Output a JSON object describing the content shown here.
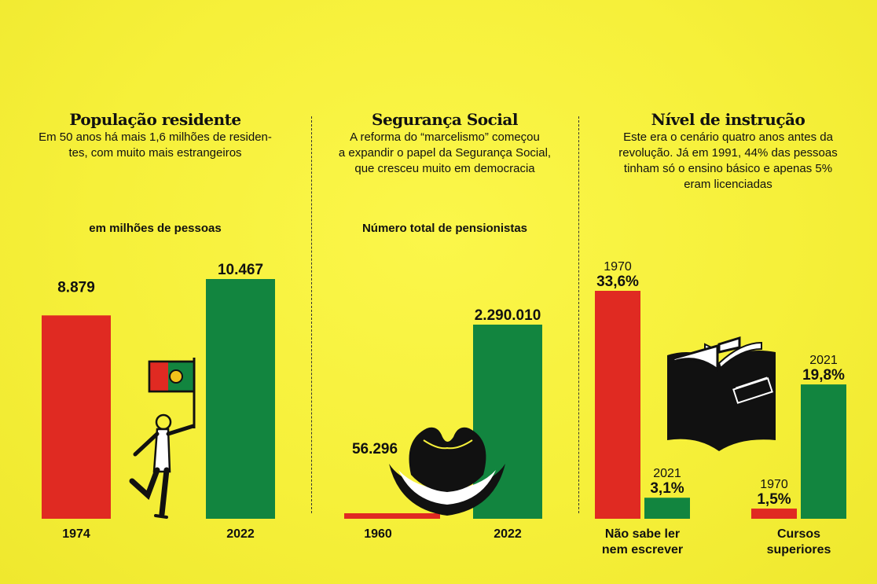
{
  "colors": {
    "red": "#e02a22",
    "green": "#12853f",
    "background": "#f6f03a",
    "ink": "#111111"
  },
  "panels": [
    {
      "title": "População residente",
      "subtitle": [
        "Em 50 anos há mais 1,6 milhões de residen-",
        "tes, com muito mais estrangeiros"
      ],
      "measure": "em milhões de pessoas",
      "icon": "flag-waving-person-icon"
    },
    {
      "title": "Segurança Social",
      "subtitle": [
        "A reforma do “marcelismo” começou",
        "a expandir o papel da Segurança Social,",
        "que cresceu muito em democracia"
      ],
      "measure": "Número total de pensionistas",
      "icon": "wide-brim-hat-icon"
    },
    {
      "title": "Nível de instrução",
      "subtitle": [
        "Este era o cenário quatro anos antes da",
        "revolução. Já em 1991, 44% das pessoas",
        "tinham só o ensino básico e apenas 5%",
        "eram licenciadas"
      ],
      "measure": "",
      "icon": "open-book-icon"
    }
  ],
  "chart_data": [
    {
      "type": "bar",
      "title": "População residente",
      "ylabel": "em milhões de pessoas",
      "categories": [
        "1974",
        "2022"
      ],
      "values": [
        8.879,
        10.467
      ],
      "value_labels": [
        "8.879",
        "10.467"
      ],
      "colors": [
        "#e02a22",
        "#12853f"
      ],
      "ylim": [
        0,
        10.467
      ]
    },
    {
      "type": "bar",
      "title": "Segurança Social",
      "ylabel": "Número total de pensionistas",
      "categories": [
        "1960",
        "2022"
      ],
      "values": [
        56296,
        2290010
      ],
      "value_labels": [
        "56.296",
        "2.290.010"
      ],
      "colors": [
        "#e02a22",
        "#12853f"
      ],
      "ylim": [
        0,
        2290010
      ]
    },
    {
      "type": "bar",
      "title": "Nível de instrução",
      "categories": [
        "Não sabe ler nem escrever",
        "Cursos superiores"
      ],
      "category_lines": [
        [
          "Não sabe ler",
          "nem escrever"
        ],
        [
          "Cursos",
          "superiores"
        ]
      ],
      "series": [
        {
          "name": "1970",
          "values": [
            33.6,
            1.5
          ],
          "value_labels": [
            "33,6%",
            "1,5%"
          ],
          "color": "#e02a22"
        },
        {
          "name": "2021",
          "values": [
            3.1,
            19.8
          ],
          "value_labels": [
            "3,1%",
            "19,8%"
          ],
          "color": "#12853f"
        }
      ],
      "ylim": [
        0,
        33.6
      ]
    }
  ]
}
